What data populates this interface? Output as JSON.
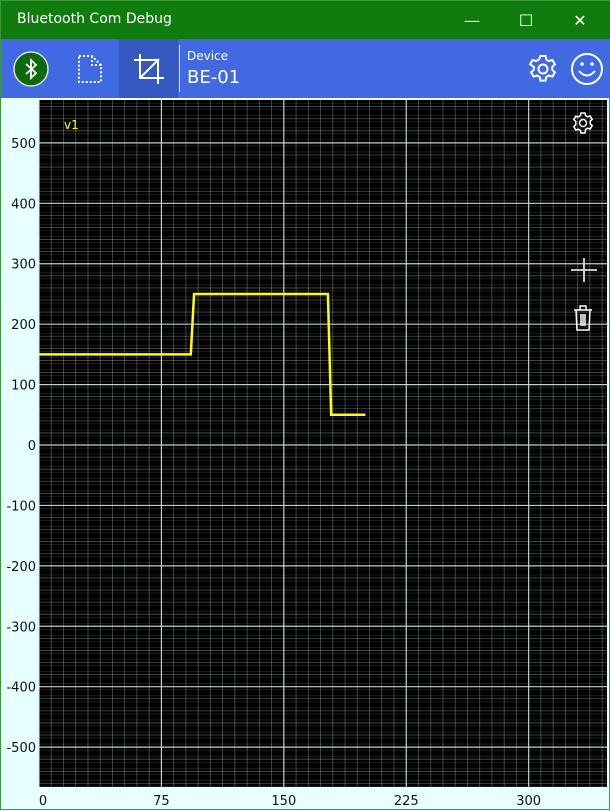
{
  "window": {
    "title": "Bluetooth Com Debug",
    "minimize": "—",
    "maximize": "☐",
    "close": "✕"
  },
  "toolbar": {
    "bluetooth_icon": "bluetooth-icon",
    "file_icon": "file-icon",
    "crop_icon": "crop-icon",
    "device_label": "Device",
    "device_value": "BE-01",
    "settings_icon": "gear-icon",
    "feedback_icon": "smiley-icon"
  },
  "chart_tools": [
    "gear-icon",
    "plus-icon",
    "trash-icon"
  ],
  "colors": {
    "titlebar": "#107c10",
    "toolbar": "#4169e1",
    "plot_bg": "#000000",
    "series": "#ffff00",
    "grid": "#cfe8e8"
  },
  "chart_data": {
    "type": "line",
    "grid": true,
    "legend": "top-left",
    "xlim": [
      0,
      348
    ],
    "ylim": [
      -566,
      571
    ],
    "xticks": [
      0,
      75,
      150,
      225,
      300
    ],
    "yticks": [
      500,
      400,
      300,
      200,
      100,
      0,
      -100,
      -200,
      -300,
      -400,
      -500
    ],
    "series": [
      {
        "name": "v1",
        "x": [
          0,
          93,
          95,
          177,
          179,
          200
        ],
        "y": [
          150,
          150,
          250,
          250,
          50,
          50
        ]
      }
    ]
  }
}
